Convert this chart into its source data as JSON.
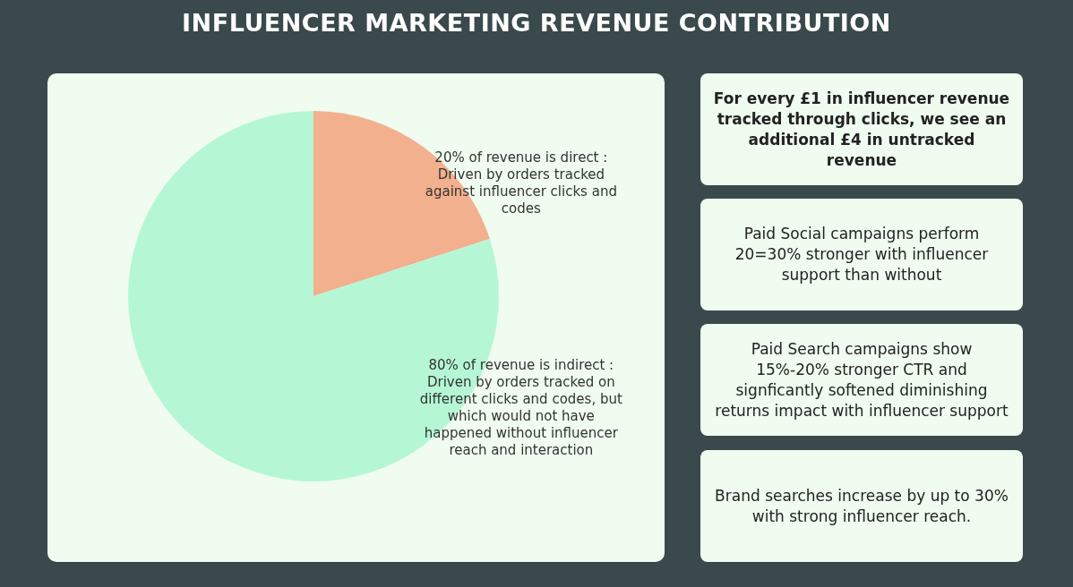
{
  "chart_data": [
    {
      "type": "pie",
      "title": "INFLUENCER MARKETING REVENUE CONTRIBUTION",
      "categories": [
        "20% of revenue is direct : Driven by orders tracked against influencer clicks and codes",
        "80% of revenue is indirect : Driven by orders tracked on different clicks and codes, but which would not have happened without influencer reach and interaction"
      ],
      "values": [
        20,
        80
      ],
      "colors": [
        "#f2b08e",
        "#b5f7d5"
      ]
    },
    {
      "type": "other",
      "annotations": [
        "For every £1 in influencer revenue tracked through clicks, we see an additional £4 in untracked revenue",
        "Paid Social campaigns perform 20=30% stronger with influencer support than without",
        "Paid Search campaigns show 15%-20% stronger CTR and signficantly softened diminishing returns impact with influencer support",
        "Brand searches increase by up to 30% with strong influencer reach."
      ]
    }
  ]
}
